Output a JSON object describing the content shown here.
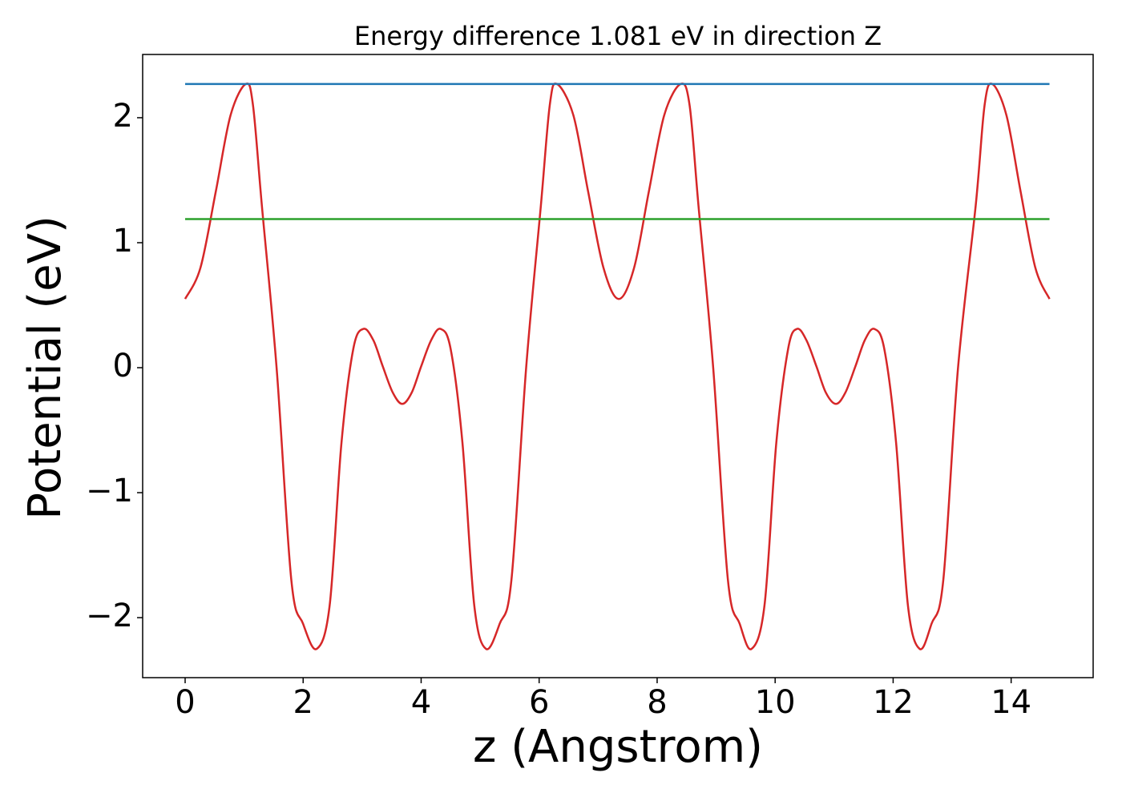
{
  "chart_data": {
    "type": "line",
    "title": "Energy difference 1.081 eV in direction Z",
    "xlabel": "z (Angstrom)",
    "ylabel": "Potential (eV)",
    "xlim": [
      -0.72,
      15.39
    ],
    "ylim": [
      -2.48,
      2.506
    ],
    "xticks": [
      0,
      2,
      4,
      6,
      8,
      10,
      12,
      14
    ],
    "yticks": [
      {
        "value": -2,
        "label": "−2"
      },
      {
        "value": -1,
        "label": "−1"
      },
      0,
      1,
      2
    ],
    "series": [
      {
        "color": "#d62728",
        "x": [
          0,
          0.26,
          0.52,
          0.77,
          1.03,
          1.15,
          1.3,
          1.55,
          1.8,
          2.0,
          2.23,
          2.45,
          2.65,
          2.85,
          3.02,
          3.19,
          3.35,
          3.52,
          3.68,
          3.84,
          4.0,
          4.17,
          4.33,
          4.5,
          4.7,
          4.9,
          5.1,
          5.33,
          5.53,
          5.78,
          6.03,
          6.18,
          6.3,
          6.58,
          6.83,
          7.09,
          7.35,
          7.61,
          7.86,
          8.12,
          8.4,
          8.55,
          8.7,
          8.95,
          9.2,
          9.4,
          9.6,
          9.82,
          10.02,
          10.22,
          10.37,
          10.53,
          10.7,
          10.86,
          11.03,
          11.19,
          11.36,
          11.52,
          11.68,
          11.85,
          12.05,
          12.25,
          12.45,
          12.65,
          12.85,
          13.1,
          13.4,
          13.55,
          13.68,
          13.92,
          14.16,
          14.41,
          14.65
        ],
        "values": [
          0.55,
          0.8,
          1.41,
          2.02,
          2.27,
          2.1,
          1.3,
          0,
          -1.7,
          -2.05,
          -2.25,
          -1.9,
          -0.6,
          0.15,
          0.31,
          0.22,
          0.01,
          -0.2,
          -0.29,
          -0.2,
          0.01,
          0.22,
          0.31,
          0.15,
          -0.6,
          -1.9,
          -2.25,
          -2.05,
          -1.7,
          0,
          1.3,
          2.1,
          2.27,
          2.02,
          1.41,
          0.8,
          0.55,
          0.8,
          1.41,
          2.02,
          2.27,
          2.1,
          1.3,
          0,
          -1.7,
          -2.05,
          -2.25,
          -1.9,
          -0.6,
          0.15,
          0.31,
          0.22,
          0.01,
          -0.2,
          -0.29,
          -0.2,
          0.01,
          0.22,
          0.31,
          0.15,
          -0.6,
          -1.9,
          -2.25,
          -2.05,
          -1.7,
          0,
          1.3,
          2.1,
          2.27,
          2.02,
          1.41,
          0.8,
          0.55
        ]
      },
      {
        "color": "#1f77b4",
        "x": [
          0,
          14.65
        ],
        "values": [
          2.27,
          2.27
        ]
      },
      {
        "color": "#2ca02c",
        "x": [
          0,
          14.65
        ],
        "values": [
          1.189,
          1.189
        ]
      }
    ]
  }
}
